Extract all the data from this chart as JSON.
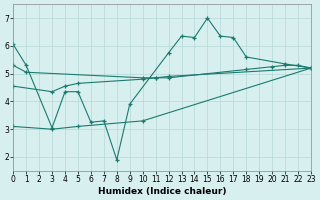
{
  "xlabel": "Humidex (Indice chaleur)",
  "xlim": [
    0,
    23
  ],
  "ylim": [
    1.5,
    7.5
  ],
  "yticks": [
    2,
    3,
    4,
    5,
    6,
    7
  ],
  "xticks": [
    0,
    1,
    2,
    3,
    4,
    5,
    6,
    7,
    8,
    9,
    10,
    11,
    12,
    13,
    14,
    15,
    16,
    17,
    18,
    19,
    20,
    21,
    22,
    23
  ],
  "bg_color": "#d8efef",
  "grid_color": "#b8d8d8",
  "line_color": "#1a7a6e",
  "line1_x": [
    0,
    1,
    3,
    4,
    5,
    6,
    7,
    8,
    9,
    12,
    13,
    14,
    15,
    16,
    17,
    18,
    21,
    23
  ],
  "line1_y": [
    6.05,
    5.3,
    3.05,
    4.35,
    4.35,
    3.25,
    3.3,
    1.9,
    3.9,
    5.75,
    6.35,
    6.3,
    7.0,
    6.35,
    6.3,
    5.6,
    5.35,
    5.2
  ],
  "line2_x": [
    0,
    1,
    10,
    11,
    12,
    18,
    20,
    21,
    22,
    23
  ],
  "line2_y": [
    5.3,
    5.05,
    4.85,
    4.85,
    4.85,
    5.15,
    5.25,
    5.3,
    5.3,
    5.2
  ],
  "line3_x": [
    0,
    3,
    4,
    5,
    10,
    11,
    12,
    23
  ],
  "line3_y": [
    4.55,
    4.35,
    4.55,
    4.65,
    4.8,
    4.85,
    4.9,
    5.2
  ],
  "line4_x": [
    0,
    3,
    5,
    10,
    23
  ],
  "line4_y": [
    3.1,
    3.0,
    3.1,
    3.3,
    5.2
  ]
}
